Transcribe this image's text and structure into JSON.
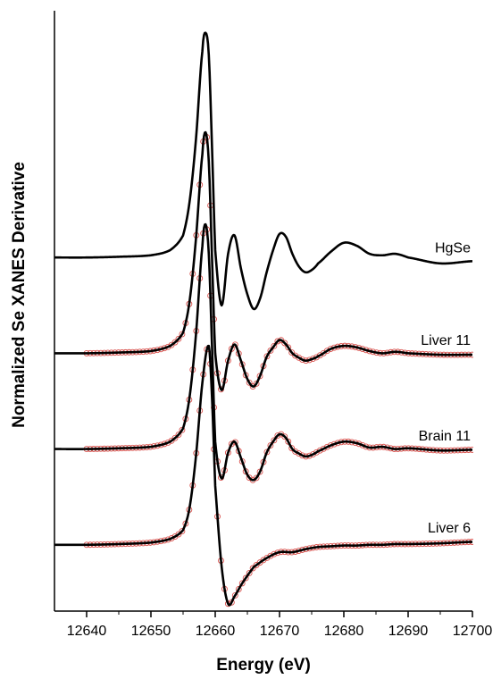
{
  "chart_data": {
    "type": "line",
    "title": "",
    "xlabel": "Energy (eV)",
    "ylabel": "Normalized Se XANES Derivative",
    "xlim": [
      12635,
      12700
    ],
    "ylim": [
      -4.8,
      3.35
    ],
    "x_ticks": [
      "12640",
      "12650",
      "12660",
      "12670",
      "12680",
      "12690",
      "12700"
    ],
    "y_ticks_shown": false,
    "grid": false,
    "legend": "none",
    "series": [
      {
        "name": "HgSe",
        "offset": 0,
        "color": "#000000",
        "fit_points": false,
        "x": [
          12635,
          12640,
          12645,
          12650,
          12653,
          12655,
          12656,
          12657,
          12658,
          12658.5,
          12659,
          12659.5,
          12660,
          12661,
          12662,
          12663,
          12664,
          12665,
          12666,
          12667,
          12668,
          12669,
          12670,
          12671,
          12672,
          12673,
          12674,
          12675,
          12676,
          12678,
          12680,
          12682,
          12684,
          12686,
          12688,
          12690,
          12695,
          12700
        ],
        "values": [
          0,
          0,
          0.01,
          0.03,
          0.1,
          0.3,
          0.75,
          1.6,
          2.8,
          3.05,
          2.75,
          1.5,
          0.1,
          -0.65,
          0.05,
          0.3,
          -0.15,
          -0.5,
          -0.7,
          -0.55,
          -0.2,
          0.1,
          0.32,
          0.28,
          0.05,
          -0.12,
          -0.2,
          -0.17,
          -0.08,
          0.08,
          0.2,
          0.16,
          0.05,
          0.03,
          0.05,
          0.0,
          -0.08,
          -0.05
        ]
      },
      {
        "name": "Liver 11",
        "offset": -1.3,
        "color": "#000000",
        "fit_points": true,
        "x": [
          12635,
          12640,
          12645,
          12650,
          12653,
          12655,
          12656,
          12657,
          12658,
          12658.5,
          12659,
          12659.5,
          12660,
          12661,
          12662,
          12663,
          12664,
          12665,
          12666,
          12667,
          12668,
          12669,
          12670,
          12671,
          12672,
          12673,
          12674,
          12675,
          12676,
          12678,
          12680,
          12682,
          12684,
          12686,
          12688,
          12690,
          12695,
          12700
        ],
        "values": [
          0,
          0,
          0.01,
          0.03,
          0.1,
          0.28,
          0.7,
          1.55,
          2.7,
          3.0,
          2.6,
          1.3,
          0.0,
          -0.5,
          -0.1,
          0.12,
          -0.1,
          -0.35,
          -0.45,
          -0.3,
          -0.05,
          0.08,
          0.18,
          0.12,
          0.0,
          -0.06,
          -0.1,
          -0.08,
          -0.04,
          0.06,
          0.1,
          0.08,
          0.03,
          0.0,
          0.02,
          0.0,
          -0.02,
          -0.02
        ]
      },
      {
        "name": "Brain 11",
        "offset": -2.6,
        "color": "#000000",
        "fit_points": true,
        "x": [
          12635,
          12640,
          12645,
          12650,
          12653,
          12655,
          12656,
          12657,
          12658,
          12658.5,
          12659,
          12659.5,
          12660,
          12661,
          12662,
          12663,
          12664,
          12665,
          12666,
          12667,
          12668,
          12669,
          12670,
          12671,
          12672,
          12673,
          12674,
          12675,
          12676,
          12678,
          12680,
          12682,
          12684,
          12686,
          12688,
          12690,
          12695,
          12700
        ],
        "values": [
          0,
          0,
          0.01,
          0.03,
          0.1,
          0.28,
          0.7,
          1.55,
          2.75,
          3.05,
          2.65,
          1.4,
          0.1,
          -0.4,
          -0.05,
          0.1,
          -0.12,
          -0.35,
          -0.42,
          -0.3,
          -0.05,
          0.1,
          0.2,
          0.15,
          0.0,
          -0.06,
          -0.1,
          -0.08,
          -0.03,
          0.05,
          0.1,
          0.08,
          0.02,
          0.03,
          0.0,
          0.01,
          -0.02,
          -0.01
        ]
      },
      {
        "name": "Liver 6",
        "offset": -3.9,
        "color": "#000000",
        "fit_points": true,
        "x": [
          12635,
          12640,
          12645,
          12650,
          12653,
          12655,
          12656,
          12657,
          12658,
          12659,
          12659.5,
          12660,
          12661,
          12662,
          12663,
          12664,
          12665,
          12666,
          12668,
          12670,
          12672,
          12674,
          12676,
          12678,
          12680,
          12682,
          12684,
          12686,
          12688,
          12690,
          12695,
          12700
        ],
        "values": [
          0,
          0,
          0.01,
          0.03,
          0.08,
          0.2,
          0.5,
          1.2,
          2.2,
          2.7,
          2.0,
          0.8,
          -0.3,
          -0.8,
          -0.7,
          -0.55,
          -0.42,
          -0.3,
          -0.18,
          -0.1,
          -0.1,
          -0.06,
          -0.03,
          -0.02,
          -0.01,
          -0.01,
          0.0,
          0.0,
          0.01,
          0.01,
          0.02,
          0.04
        ]
      }
    ]
  }
}
